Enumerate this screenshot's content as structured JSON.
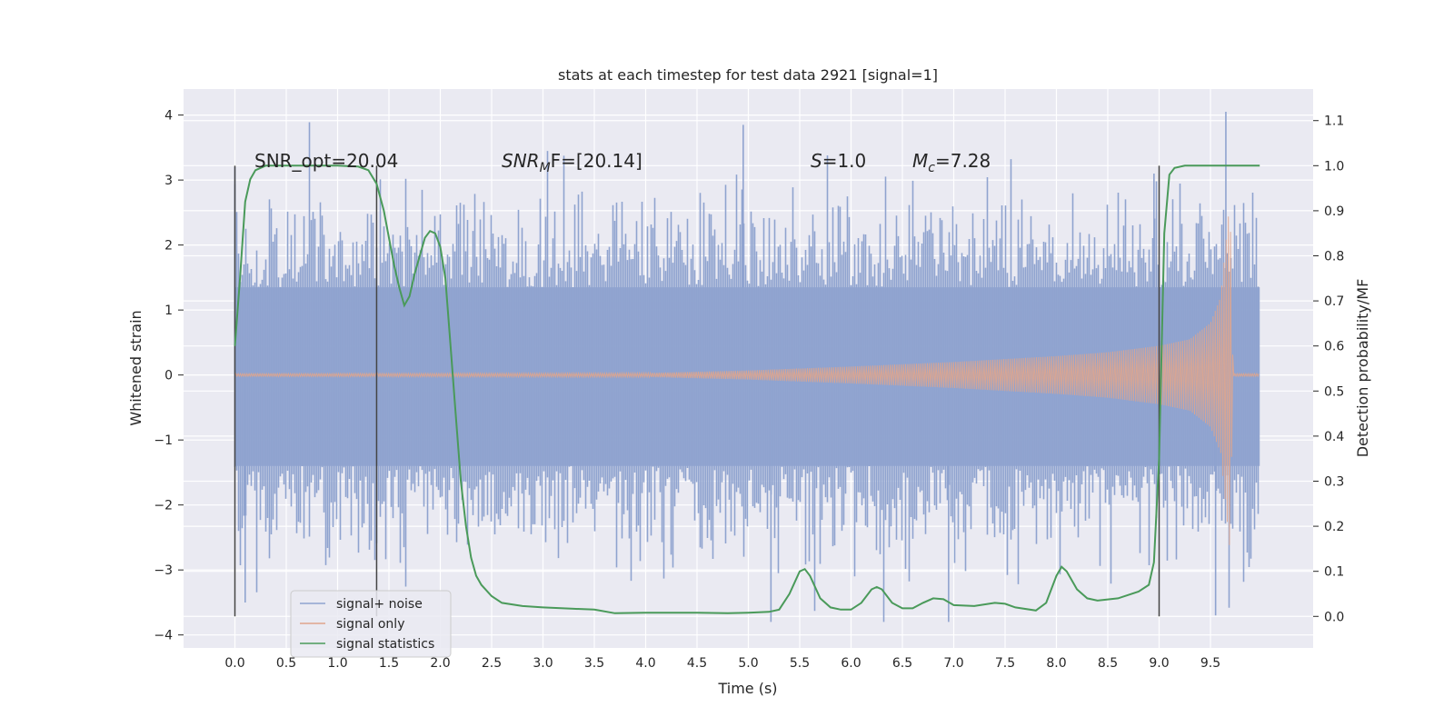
{
  "chart_data": {
    "type": "line",
    "title": "stats at each timestep for test data 2921 [signal=1]",
    "xlabel": "Time (s)",
    "ylabel": "Whitened strain",
    "y2label": "Detection probability/MF",
    "xlim": [
      -0.5,
      10.5
    ],
    "ylim": [
      -4.2,
      4.4
    ],
    "y2lim": [
      -0.07,
      1.17
    ],
    "xticks": [
      "0.0",
      "0.5",
      "1.0",
      "1.5",
      "2.0",
      "2.5",
      "3.0",
      "3.5",
      "4.0",
      "4.5",
      "5.0",
      "5.5",
      "6.0",
      "6.5",
      "7.0",
      "7.5",
      "8.0",
      "8.5",
      "9.0",
      "9.5"
    ],
    "yticks": [
      "4",
      "3",
      "2",
      "1",
      "0",
      "−1",
      "−2",
      "−3",
      "−4"
    ],
    "y2ticks": [
      "1.1",
      "1.0",
      "0.9",
      "0.8",
      "0.7",
      "0.6",
      "0.5",
      "0.4",
      "0.3",
      "0.2",
      "0.1",
      "0.0"
    ],
    "grid": true,
    "legend_position": "lower-left",
    "annotations": {
      "snr_opt": "SNR_opt=20.04",
      "snr_mf_base": "SNR",
      "snr_mf_sub": "M",
      "snr_mf_rest": "F=[20.14]",
      "s_italic": "S",
      "s_rest": "=1.0",
      "mc_base": "M",
      "mc_sub": "c",
      "mc_rest": "=7.28"
    },
    "vertical_markers": [
      0.0,
      1.38,
      9.0
    ],
    "series": [
      {
        "name": "signal+ noise",
        "color": "#8fa3cf",
        "description_values": {
          "x_start": 0.0,
          "x_end": 9.98,
          "noise_band": [
            -1.4,
            1.35
          ],
          "peak_max": 4.05,
          "peak_min": -3.8
        }
      },
      {
        "name": "signal only",
        "color": "#e0a58c",
        "envelope": {
          "x": [
            0.0,
            4.0,
            5.0,
            6.0,
            7.0,
            8.0,
            8.5,
            9.0,
            9.3,
            9.5,
            9.6,
            9.66,
            9.69,
            9.72
          ],
          "amp": [
            0.02,
            0.03,
            0.07,
            0.13,
            0.2,
            0.29,
            0.35,
            0.45,
            0.55,
            0.8,
            1.2,
            2.2,
            2.7,
            0.03
          ]
        }
      },
      {
        "name": "signal statistics",
        "color": "#4a9a5a",
        "x": [
          0.0,
          0.05,
          0.1,
          0.15,
          0.2,
          0.3,
          0.5,
          0.8,
          1.0,
          1.2,
          1.3,
          1.38,
          1.45,
          1.5,
          1.55,
          1.6,
          1.65,
          1.7,
          1.75,
          1.8,
          1.85,
          1.9,
          1.95,
          2.0,
          2.05,
          2.1,
          2.15,
          2.2,
          2.25,
          2.3,
          2.35,
          2.4,
          2.5,
          2.6,
          2.8,
          3.0,
          3.3,
          3.5,
          3.7,
          4.0,
          4.5,
          4.8,
          5.0,
          5.2,
          5.3,
          5.4,
          5.5,
          5.55,
          5.6,
          5.7,
          5.8,
          5.9,
          6.0,
          6.1,
          6.2,
          6.25,
          6.3,
          6.4,
          6.5,
          6.6,
          6.7,
          6.8,
          6.9,
          7.0,
          7.2,
          7.4,
          7.5,
          7.6,
          7.8,
          7.9,
          8.0,
          8.05,
          8.1,
          8.2,
          8.3,
          8.4,
          8.6,
          8.8,
          8.9,
          8.95,
          9.0,
          9.05,
          9.1,
          9.15,
          9.25,
          9.5,
          9.7,
          9.98
        ],
        "y": [
          0.6,
          0.75,
          0.92,
          0.97,
          0.99,
          1.0,
          1.0,
          1.0,
          1.0,
          0.998,
          0.99,
          0.96,
          0.9,
          0.84,
          0.78,
          0.73,
          0.69,
          0.71,
          0.76,
          0.8,
          0.84,
          0.855,
          0.85,
          0.82,
          0.75,
          0.6,
          0.45,
          0.3,
          0.2,
          0.13,
          0.09,
          0.07,
          0.045,
          0.03,
          0.023,
          0.02,
          0.017,
          0.015,
          0.007,
          0.008,
          0.008,
          0.007,
          0.008,
          0.01,
          0.015,
          0.05,
          0.1,
          0.105,
          0.09,
          0.04,
          0.02,
          0.015,
          0.015,
          0.03,
          0.06,
          0.065,
          0.06,
          0.03,
          0.018,
          0.018,
          0.03,
          0.04,
          0.038,
          0.025,
          0.023,
          0.03,
          0.028,
          0.02,
          0.013,
          0.03,
          0.09,
          0.11,
          0.1,
          0.06,
          0.04,
          0.035,
          0.04,
          0.055,
          0.07,
          0.12,
          0.35,
          0.85,
          0.98,
          0.995,
          1.0,
          1.0,
          1.0,
          1.0
        ]
      }
    ]
  }
}
